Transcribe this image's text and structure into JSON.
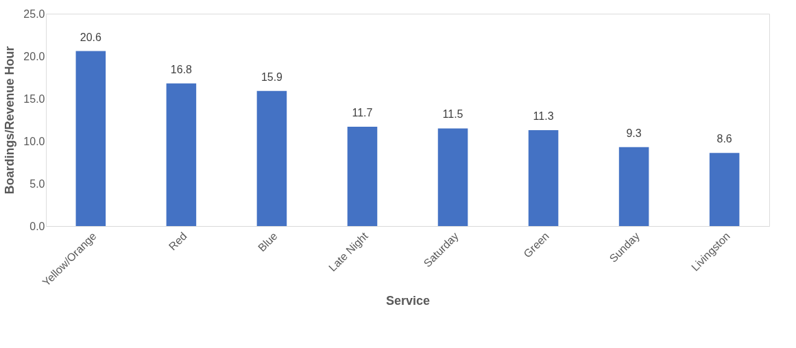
{
  "chart_data": {
    "type": "bar",
    "xlabel": "Service",
    "ylabel": "Boardings/Revenue Hour",
    "categories": [
      "Yellow/Orange",
      "Red",
      "Blue",
      "Late Night",
      "Saturday",
      "Green",
      "Sunday",
      "Livingston"
    ],
    "values": [
      20.6,
      16.8,
      15.9,
      11.7,
      11.5,
      11.3,
      9.3,
      8.6
    ],
    "color": "#4472c4",
    "ylim": [
      0,
      25
    ],
    "yticks": [
      {
        "value": 0,
        "label": "0.0"
      },
      {
        "value": 5,
        "label": "5.0"
      },
      {
        "value": 10,
        "label": "10.0"
      },
      {
        "value": 15,
        "label": "15.0"
      },
      {
        "value": 20,
        "label": "20.0"
      },
      {
        "value": 25,
        "label": "25.0"
      }
    ],
    "grid": false,
    "data_labels": true
  }
}
